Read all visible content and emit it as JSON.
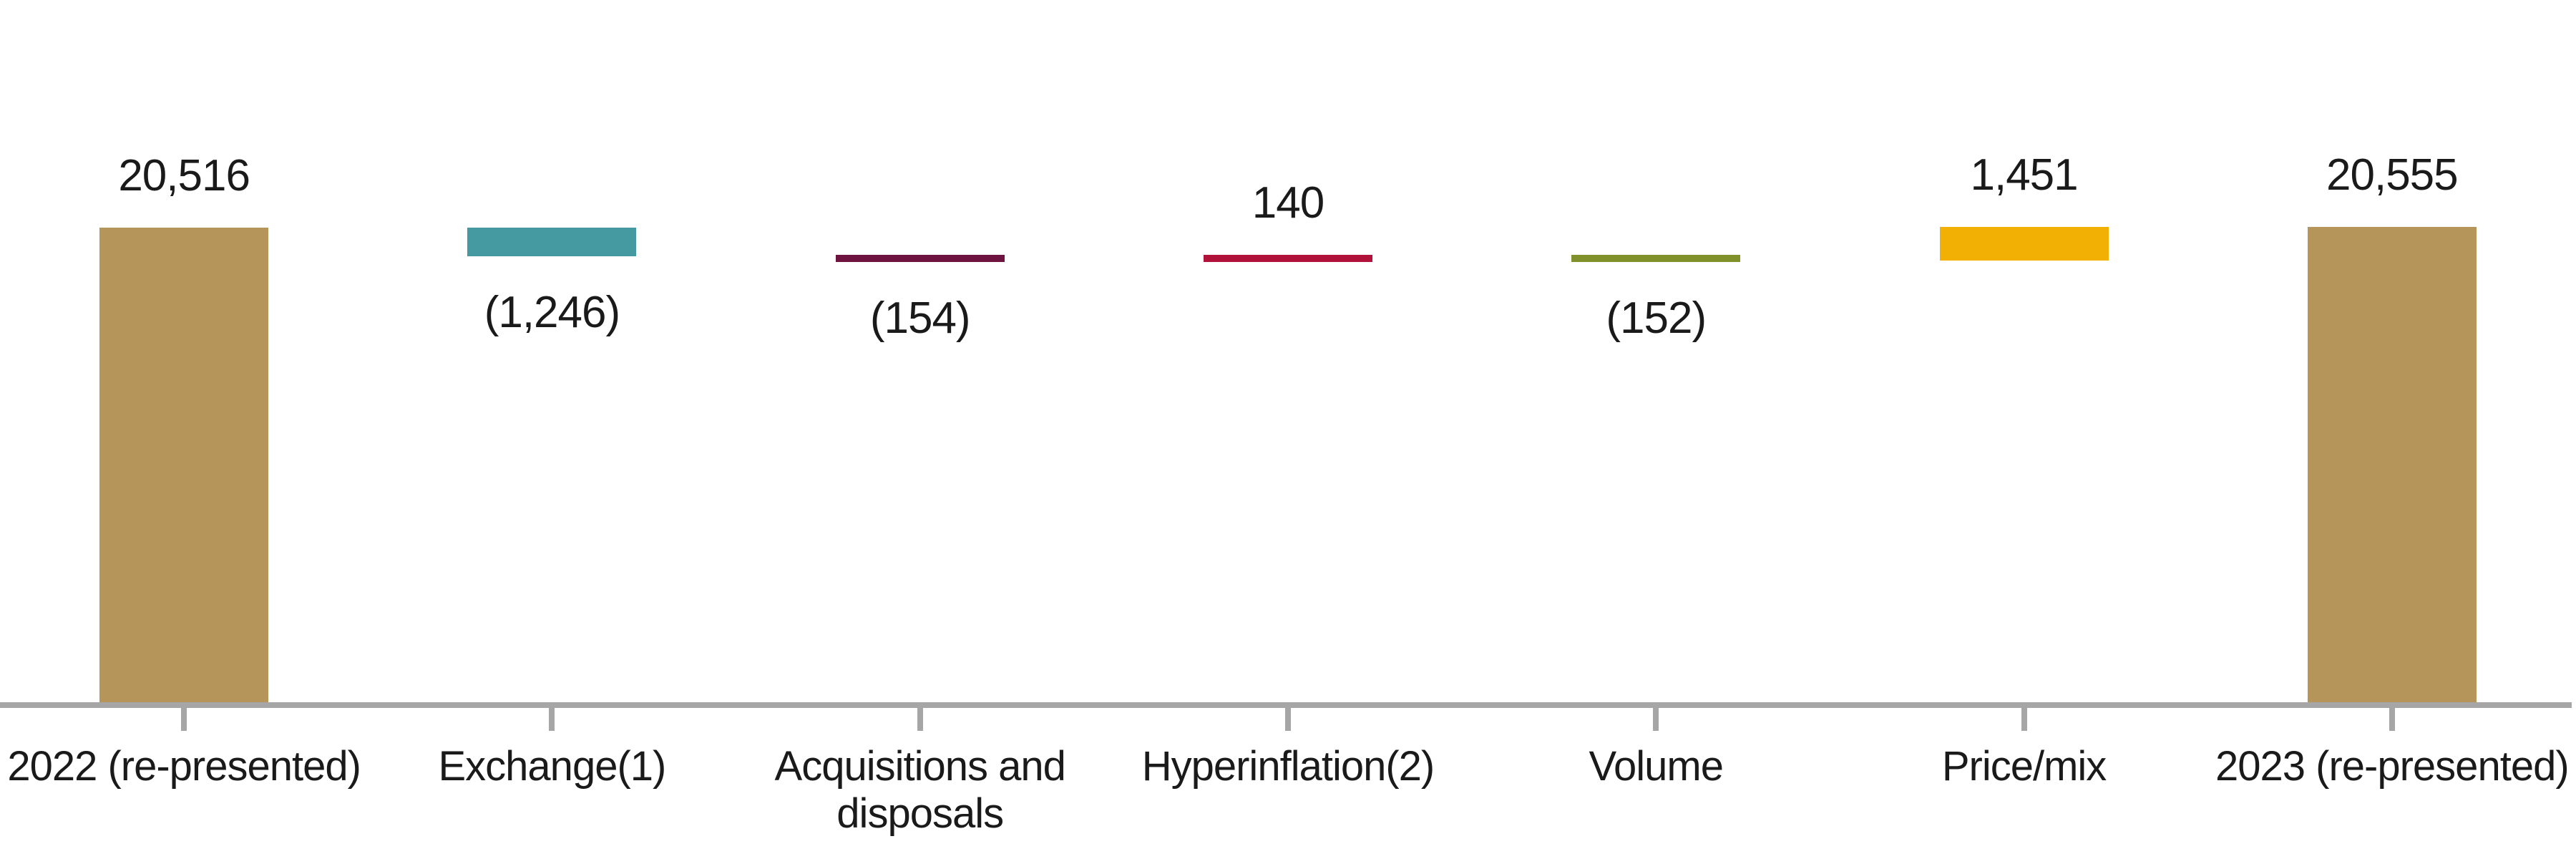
{
  "chart_data": {
    "type": "waterfall",
    "title": "",
    "categories": [
      "2022 (re-presented)",
      "Exchange(1)",
      "Acquisitions and\ndisposals",
      "Hyperinflation(2)",
      "Volume",
      "Price/mix",
      "2023 (re-presented)"
    ],
    "bars": [
      {
        "category": "2022 (re-presented)",
        "kind": "total",
        "value": 20516,
        "display": "20,516",
        "label_position": "above",
        "color": "#b6955a"
      },
      {
        "category": "Exchange(1)",
        "kind": "delta",
        "value": -1246,
        "display": "(1,246)",
        "label_position": "below",
        "color": "#4599a1"
      },
      {
        "category": "Acquisitions and disposals",
        "kind": "delta",
        "value": -154,
        "display": "(154)",
        "label_position": "below",
        "color": "#6f1340"
      },
      {
        "category": "Hyperinflation(2)",
        "kind": "delta",
        "value": 140,
        "display": "140",
        "label_position": "above",
        "color": "#b01239"
      },
      {
        "category": "Volume",
        "kind": "delta",
        "value": -152,
        "display": "(152)",
        "label_position": "below",
        "color": "#80912c"
      },
      {
        "category": "Price/mix",
        "kind": "delta",
        "value": 1451,
        "display": "1,451",
        "label_position": "above",
        "color": "#f2b005"
      },
      {
        "category": "2023 (re-presented)",
        "kind": "total",
        "value": 20555,
        "display": "20,555",
        "label_position": "above",
        "color": "#b6955a"
      }
    ],
    "running_totals": [
      20516,
      19270,
      19116,
      19256,
      19104,
      20555,
      20555
    ],
    "axis": {
      "baseline_value": 0,
      "line_color": "#a6a6a6",
      "tick_color": "#a6a6a6",
      "ticks_at": "category-centers"
    },
    "ylim": [
      0,
      20555
    ],
    "grid": false,
    "legend": false,
    "text_color": "#1a1a1a",
    "background_color": "#ffffff"
  }
}
